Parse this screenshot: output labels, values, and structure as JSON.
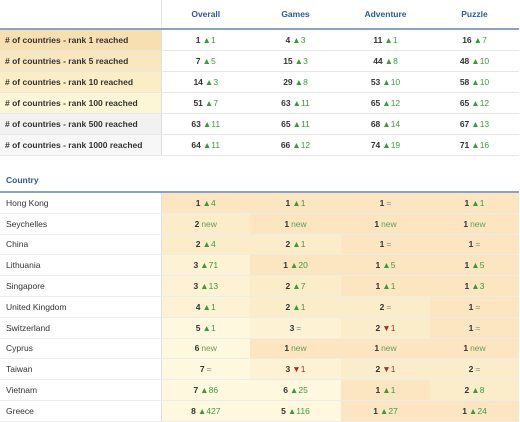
{
  "colors": {
    "header_text": "#2e5b94",
    "up": "#3c9a3c",
    "down": "#a03030",
    "label_bg": {
      "rank1": "#f8dfb2",
      "rank5": "#f9e7bf",
      "rank10": "#fbeec7",
      "rank100": "#fdf6d6",
      "rank500": "#f1f1f1",
      "rank1000": "#f7f7f7"
    },
    "cell_bg": {
      "r1": "#fbe6c1",
      "r2": "#fcedca",
      "r3": "#fdf3d4",
      "r4": "#fef8de"
    }
  },
  "columns": [
    "Overall",
    "Games",
    "Adventure",
    "Puzzle"
  ],
  "summary_rows": [
    {
      "label": "# of countries - rank 1 reached",
      "tier": "rank1",
      "values": [
        {
          "v": "1",
          "d": "1",
          "t": "up"
        },
        {
          "v": "4",
          "d": "3",
          "t": "up"
        },
        {
          "v": "11",
          "d": "1",
          "t": "up"
        },
        {
          "v": "16",
          "d": "7",
          "t": "up"
        }
      ]
    },
    {
      "label": "# of countries - rank 5 reached",
      "tier": "rank5",
      "values": [
        {
          "v": "7",
          "d": "5",
          "t": "up"
        },
        {
          "v": "15",
          "d": "3",
          "t": "up"
        },
        {
          "v": "44",
          "d": "8",
          "t": "up"
        },
        {
          "v": "48",
          "d": "10",
          "t": "up"
        }
      ]
    },
    {
      "label": "# of countries - rank 10 reached",
      "tier": "rank10",
      "values": [
        {
          "v": "14",
          "d": "3",
          "t": "up"
        },
        {
          "v": "29",
          "d": "8",
          "t": "up"
        },
        {
          "v": "53",
          "d": "10",
          "t": "up"
        },
        {
          "v": "58",
          "d": "10",
          "t": "up"
        }
      ]
    },
    {
      "label": "# of countries - rank 100 reached",
      "tier": "rank100",
      "values": [
        {
          "v": "51",
          "d": "7",
          "t": "up"
        },
        {
          "v": "63",
          "d": "11",
          "t": "up"
        },
        {
          "v": "65",
          "d": "12",
          "t": "up"
        },
        {
          "v": "65",
          "d": "12",
          "t": "up"
        }
      ]
    },
    {
      "label": "# of countries - rank 500 reached",
      "tier": "rank500",
      "values": [
        {
          "v": "63",
          "d": "11",
          "t": "up"
        },
        {
          "v": "65",
          "d": "11",
          "t": "up"
        },
        {
          "v": "68",
          "d": "14",
          "t": "up"
        },
        {
          "v": "67",
          "d": "13",
          "t": "up"
        }
      ]
    },
    {
      "label": "# of countries - rank 1000 reached",
      "tier": "rank1000",
      "values": [
        {
          "v": "64",
          "d": "11",
          "t": "up"
        },
        {
          "v": "66",
          "d": "12",
          "t": "up"
        },
        {
          "v": "74",
          "d": "19",
          "t": "up"
        },
        {
          "v": "71",
          "d": "16",
          "t": "up"
        }
      ]
    }
  ],
  "country_header": "Country",
  "countries": [
    {
      "name": "Hong Kong",
      "values": [
        {
          "v": "1",
          "d": "4",
          "t": "up"
        },
        {
          "v": "1",
          "d": "1",
          "t": "up"
        },
        {
          "v": "1",
          "d": "=",
          "t": "same"
        },
        {
          "v": "1",
          "d": "1",
          "t": "up"
        }
      ]
    },
    {
      "name": "Seychelles",
      "values": [
        {
          "v": "2",
          "d": "new",
          "t": "new"
        },
        {
          "v": "1",
          "d": "new",
          "t": "new"
        },
        {
          "v": "1",
          "d": "new",
          "t": "new"
        },
        {
          "v": "1",
          "d": "new",
          "t": "new"
        }
      ]
    },
    {
      "name": "China",
      "values": [
        {
          "v": "2",
          "d": "4",
          "t": "up"
        },
        {
          "v": "2",
          "d": "1",
          "t": "up"
        },
        {
          "v": "1",
          "d": "=",
          "t": "same"
        },
        {
          "v": "1",
          "d": "=",
          "t": "same"
        }
      ]
    },
    {
      "name": "Lithuania",
      "values": [
        {
          "v": "3",
          "d": "71",
          "t": "up"
        },
        {
          "v": "1",
          "d": "20",
          "t": "up"
        },
        {
          "v": "1",
          "d": "5",
          "t": "up"
        },
        {
          "v": "1",
          "d": "5",
          "t": "up"
        }
      ]
    },
    {
      "name": "Singapore",
      "values": [
        {
          "v": "3",
          "d": "13",
          "t": "up"
        },
        {
          "v": "2",
          "d": "7",
          "t": "up"
        },
        {
          "v": "1",
          "d": "1",
          "t": "up"
        },
        {
          "v": "1",
          "d": "3",
          "t": "up"
        }
      ]
    },
    {
      "name": "United Kingdom",
      "values": [
        {
          "v": "4",
          "d": "1",
          "t": "up"
        },
        {
          "v": "2",
          "d": "1",
          "t": "up"
        },
        {
          "v": "2",
          "d": "=",
          "t": "same"
        },
        {
          "v": "1",
          "d": "=",
          "t": "same"
        }
      ]
    },
    {
      "name": "Switzerland",
      "values": [
        {
          "v": "5",
          "d": "1",
          "t": "up"
        },
        {
          "v": "3",
          "d": "=",
          "t": "same"
        },
        {
          "v": "2",
          "d": "1",
          "t": "down"
        },
        {
          "v": "1",
          "d": "=",
          "t": "same"
        }
      ]
    },
    {
      "name": "Cyprus",
      "values": [
        {
          "v": "6",
          "d": "new",
          "t": "new"
        },
        {
          "v": "1",
          "d": "new",
          "t": "new"
        },
        {
          "v": "1",
          "d": "new",
          "t": "new"
        },
        {
          "v": "1",
          "d": "new",
          "t": "new"
        }
      ]
    },
    {
      "name": "Taiwan",
      "values": [
        {
          "v": "7",
          "d": "=",
          "t": "same"
        },
        {
          "v": "3",
          "d": "1",
          "t": "down"
        },
        {
          "v": "2",
          "d": "1",
          "t": "down"
        },
        {
          "v": "2",
          "d": "=",
          "t": "same"
        }
      ]
    },
    {
      "name": "Vietnam",
      "values": [
        {
          "v": "7",
          "d": "86",
          "t": "up"
        },
        {
          "v": "6",
          "d": "25",
          "t": "up"
        },
        {
          "v": "1",
          "d": "1",
          "t": "up"
        },
        {
          "v": "2",
          "d": "8",
          "t": "up"
        }
      ]
    },
    {
      "name": "Greece",
      "values": [
        {
          "v": "8",
          "d": "427",
          "t": "up"
        },
        {
          "v": "5",
          "d": "116",
          "t": "up"
        },
        {
          "v": "1",
          "d": "27",
          "t": "up"
        },
        {
          "v": "1",
          "d": "24",
          "t": "up"
        }
      ]
    }
  ]
}
